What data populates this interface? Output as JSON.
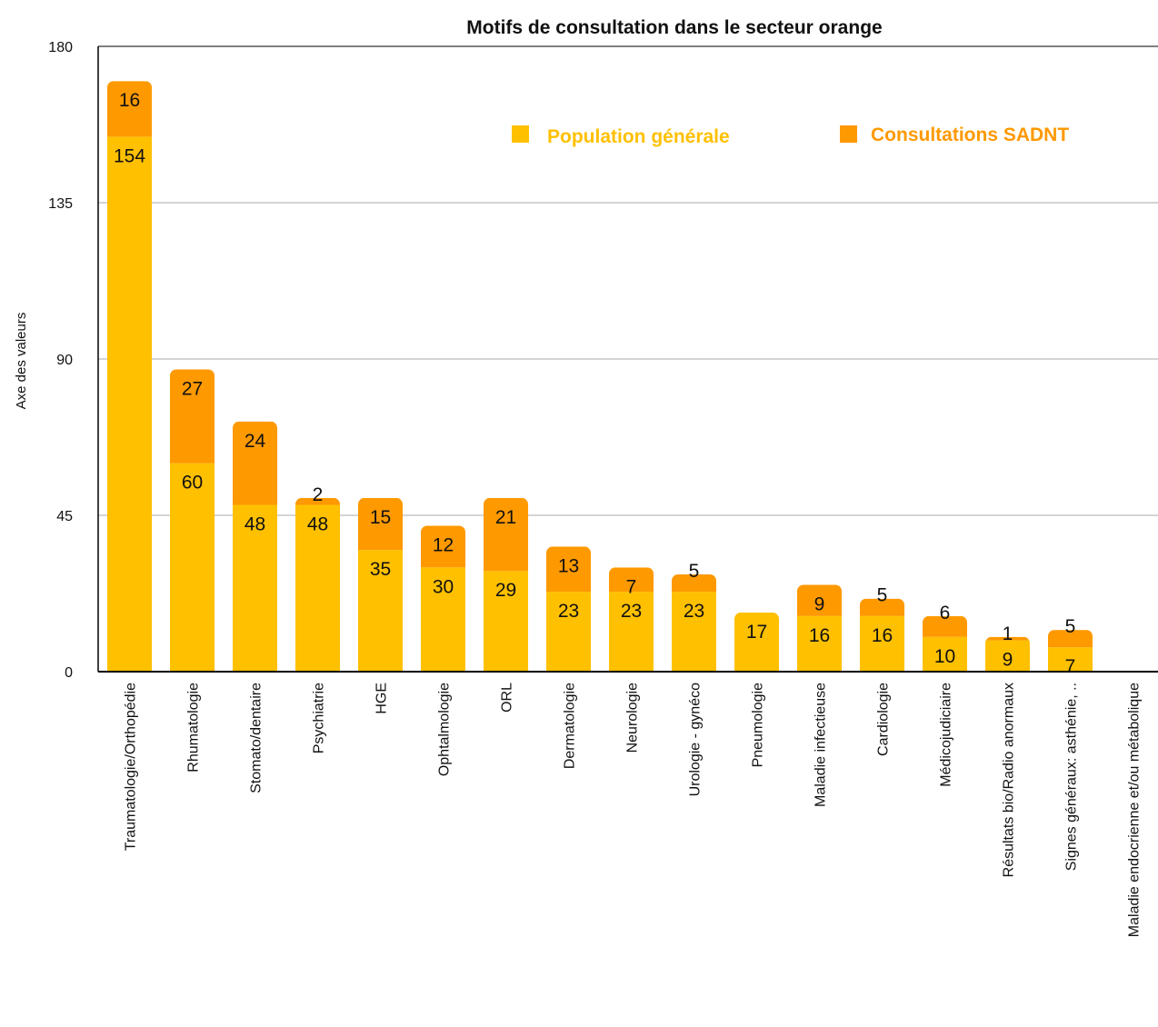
{
  "chart_data": {
    "type": "bar",
    "stacked": true,
    "title": "Motifs de consultation dans le secteur orange",
    "xlabel": "",
    "ylabel": "Axe des valeurs",
    "ylim": [
      0,
      180
    ],
    "yticks": [
      "0",
      "45",
      "90",
      "135",
      "180"
    ],
    "ytick_values": [
      0,
      45,
      90,
      135,
      180
    ],
    "grid": true,
    "legend_position": "top-right",
    "categories": [
      "Traumatologie/Orthopédie",
      "Rhumatologie",
      "Stomato/dentaire",
      "Psychiatrie",
      "HGE",
      "Ophtalmologie",
      "ORL",
      "Dermatologie",
      "Neurologie",
      "Urologie - gynéco",
      "Pneumologie",
      "Maladie infectieuse",
      "Cardiologie",
      "Médicojudiciaire",
      "Résultats bio/Radio anormaux",
      "Signes généraux: asthénie, ..",
      "Maladie endocrienne et/ou métabolique"
    ],
    "series": [
      {
        "name": "Population générale",
        "color": "#FFC000",
        "values": [
          154,
          60,
          48,
          48,
          35,
          30,
          29,
          23,
          23,
          23,
          17,
          16,
          16,
          10,
          9,
          7,
          null
        ]
      },
      {
        "name": "Consultations SADNT",
        "color": "#FF9900",
        "values": [
          16,
          27,
          24,
          2,
          15,
          12,
          21,
          13,
          7,
          5,
          null,
          9,
          5,
          6,
          1,
          5,
          null
        ]
      }
    ]
  }
}
